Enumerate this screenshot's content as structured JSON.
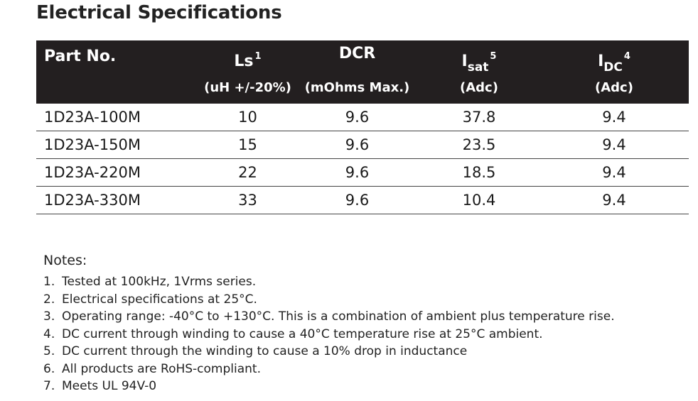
{
  "title": "Electrical Specifications",
  "table": {
    "headers": {
      "part": "Part No.",
      "ls_main": "Ls",
      "ls_sup": "1",
      "ls_unit": "(uH +/-20%)",
      "dcr_main": "DCR",
      "dcr_unit": "(mOhms Max.)",
      "isat_main": "I",
      "isat_sub": "sat",
      "isat_sup": "5",
      "isat_unit": "(Adc)",
      "idc_main": "I",
      "idc_sub": "DC",
      "idc_sup": "4",
      "idc_unit": "(Adc)"
    },
    "rows": [
      {
        "part": "1D23A-100M",
        "ls": "10",
        "dcr": "9.6",
        "isat": "37.8",
        "idc": "9.4"
      },
      {
        "part": "1D23A-150M",
        "ls": "15",
        "dcr": "9.6",
        "isat": "23.5",
        "idc": "9.4"
      },
      {
        "part": "1D23A-220M",
        "ls": "22",
        "dcr": "9.6",
        "isat": "18.5",
        "idc": "9.4"
      },
      {
        "part": "1D23A-330M",
        "ls": "33",
        "dcr": "9.6",
        "isat": "10.4",
        "idc": "9.4"
      }
    ]
  },
  "notes": {
    "title": "Notes:",
    "items": [
      {
        "num": "1.",
        "text": "Tested at 100kHz, 1Vrms series."
      },
      {
        "num": "2.",
        "text": "Electrical specifications at 25°C."
      },
      {
        "num": "3.",
        "text": "Operating range: -40°C to +130°C. This is a combination of ambient plus temperature rise."
      },
      {
        "num": "4.",
        "text": "DC current through winding to cause a 40°C temperature rise at 25°C ambient."
      },
      {
        "num": "5.",
        "text": "DC current through the winding to cause a 10% drop in inductance"
      },
      {
        "num": "6.",
        "text": "All products are RoHS-compliant."
      },
      {
        "num": "7.",
        "text": "Meets UL 94V-0"
      }
    ]
  },
  "colors": {
    "header_bg": "#231f20",
    "header_text": "#ffffff",
    "row_rule": "#444444"
  }
}
